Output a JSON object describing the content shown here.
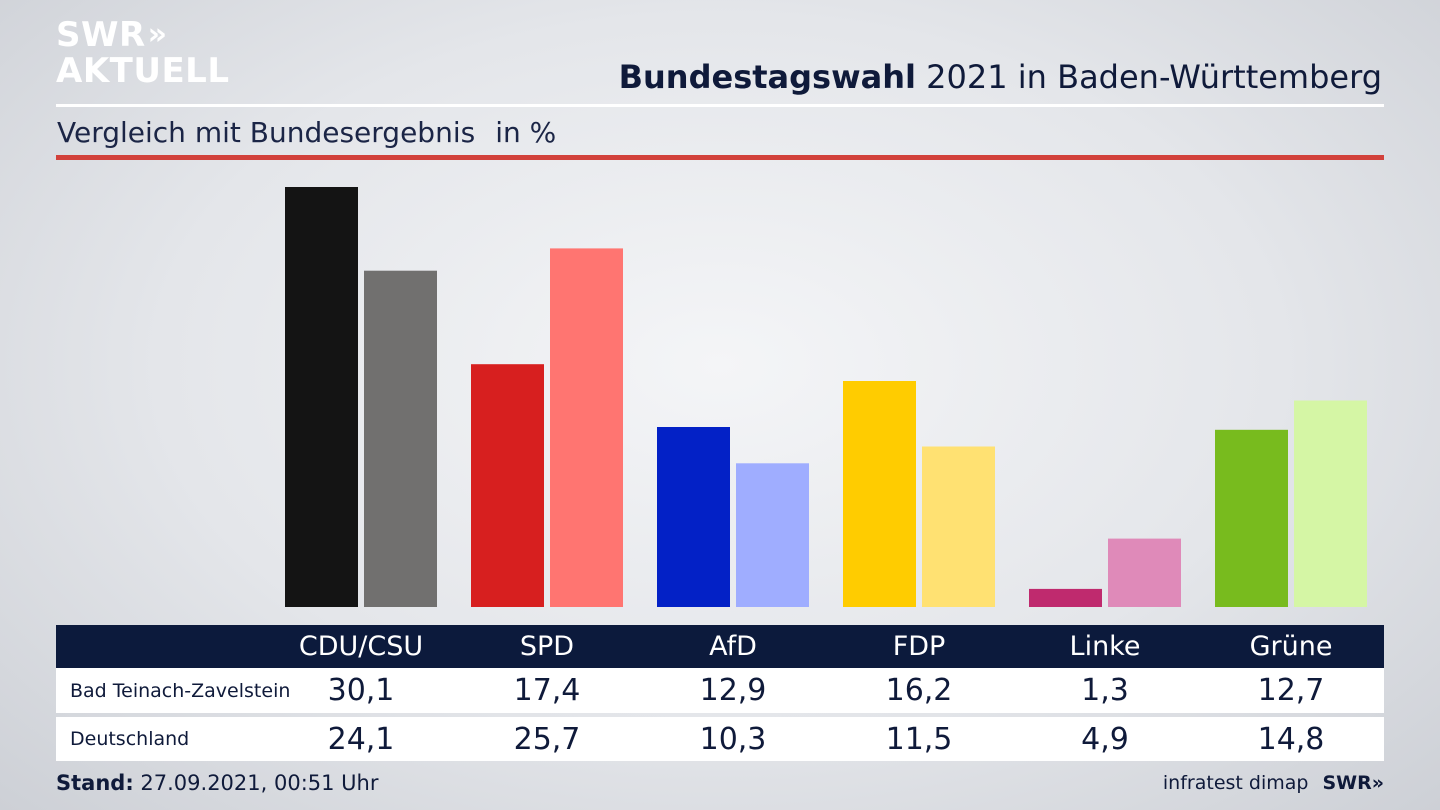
{
  "header": {
    "logo_line1": "SWR",
    "logo_chevrons": "»",
    "logo_line2": "AKTUELL",
    "title_bold": "Bundestagswahl",
    "title_rest": " 2021 in Baden-Württemberg",
    "subtitle": "Vergleich mit Bundesergebnis",
    "unit": "in %"
  },
  "chart_data": {
    "type": "bar",
    "title": "Bundestagswahl 2021 in Baden-Württemberg",
    "subtitle": "Vergleich mit Bundesergebnis in %",
    "categories": [
      "CDU/CSU",
      "SPD",
      "AfD",
      "FDP",
      "Linke",
      "Grüne"
    ],
    "series": [
      {
        "name": "Bad Teinach-Zavelstein",
        "values": [
          30.1,
          17.4,
          12.9,
          16.2,
          1.3,
          12.7
        ],
        "labels": [
          "30,1",
          "17,4",
          "12,9",
          "16,2",
          "1,3",
          "12,7"
        ],
        "colors": [
          "#141414",
          "#d71f1f",
          "#0321c6",
          "#ffcc00",
          "#bf2a6e",
          "#78bb1e"
        ]
      },
      {
        "name": "Deutschland",
        "values": [
          24.1,
          25.7,
          10.3,
          11.5,
          4.9,
          14.8
        ],
        "labels": [
          "24,1",
          "25,7",
          "10,3",
          "11,5",
          "4,9",
          "14,8"
        ],
        "colors": [
          "#71706f",
          "#ff7571",
          "#9fadff",
          "#ffe172",
          "#df8ab9",
          "#d5f6a5"
        ]
      }
    ],
    "ylim": [
      0,
      30.1
    ],
    "grid": false,
    "legend": "table-below"
  },
  "footer": {
    "stand_label": "Stand:",
    "stand_value": " 27.09.2021, 00:51 Uhr",
    "source": "infratest dimap",
    "source_logo": "SWR»"
  }
}
